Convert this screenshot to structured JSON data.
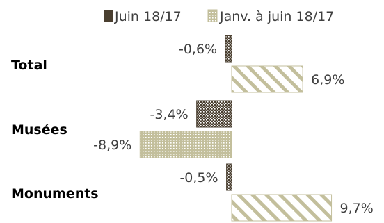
{
  "chart_data": {
    "type": "bar",
    "orientation": "horizontal",
    "categories": [
      "Total",
      "Musées",
      "Monuments"
    ],
    "series": [
      {
        "name": "Juin 18/17",
        "values": [
          -0.6,
          -3.4,
          -0.5
        ],
        "labels": [
          "-0,6%",
          "-3,4%",
          "-0,5%"
        ],
        "fill": "dark-crosshatch"
      },
      {
        "name": "Janv. à juin 18/17",
        "values": [
          6.9,
          -8.9,
          9.7
        ],
        "labels": [
          "6,9%",
          "-8,9%",
          "9,7%"
        ],
        "fill": "light-pattern"
      }
    ],
    "unit": "%",
    "legend_position": "top",
    "grid": false,
    "colors": {
      "dark": "#4a3f30",
      "light": "#c3bf9c",
      "text": "#3f3f3f"
    }
  }
}
